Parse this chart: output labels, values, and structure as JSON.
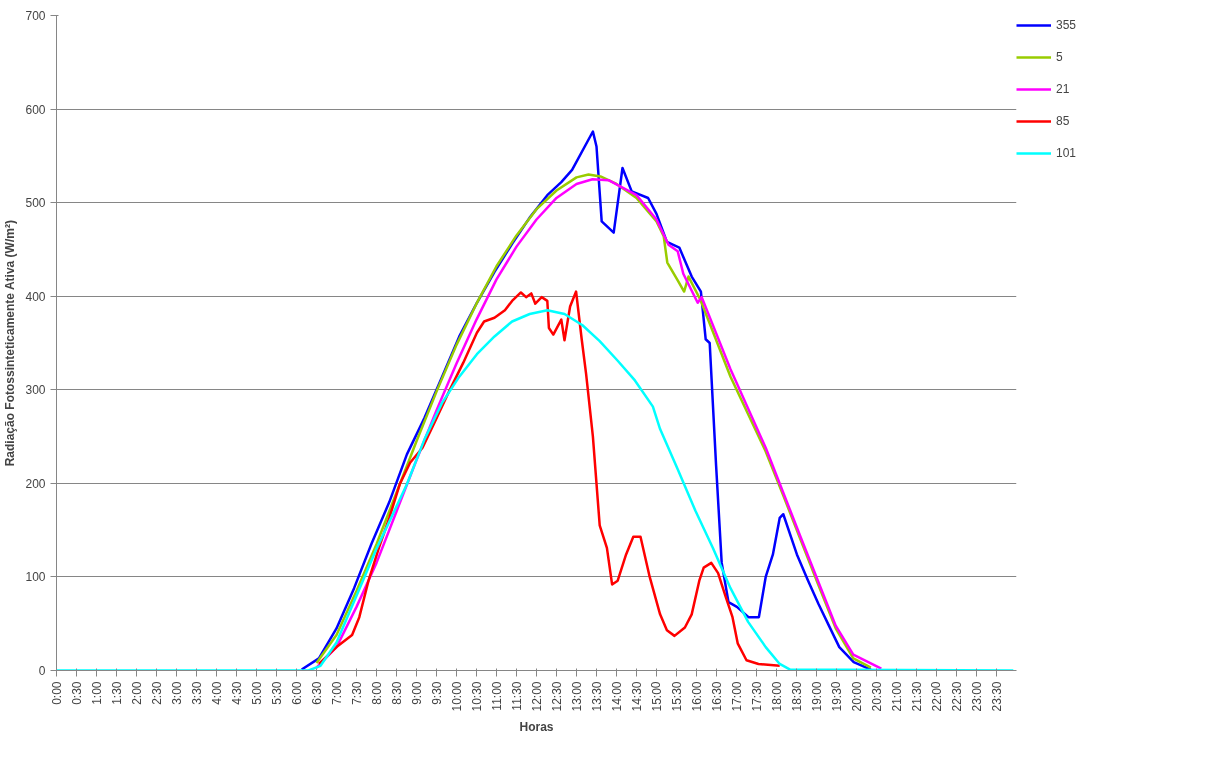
{
  "chart_data": {
    "type": "line",
    "xlabel": "Horas",
    "ylabel": "Radiação Fotossinteticamente Ativa (W/m²)",
    "xlim": [
      0,
      24
    ],
    "ylim": [
      0,
      700
    ],
    "yticks": [
      0,
      100,
      200,
      300,
      400,
      500,
      600,
      700
    ],
    "xticks": [
      {
        "value": 0,
        "label": "0:00"
      },
      {
        "value": 0.5,
        "label": "0:30"
      },
      {
        "value": 1,
        "label": "1:00"
      },
      {
        "value": 1.5,
        "label": "1:30"
      },
      {
        "value": 2,
        "label": "2:00"
      },
      {
        "value": 2.5,
        "label": "2:30"
      },
      {
        "value": 3,
        "label": "3:00"
      },
      {
        "value": 3.5,
        "label": "3:30"
      },
      {
        "value": 4,
        "label": "4:00"
      },
      {
        "value": 4.5,
        "label": "4:30"
      },
      {
        "value": 5,
        "label": "5:00"
      },
      {
        "value": 5.5,
        "label": "5:30"
      },
      {
        "value": 6,
        "label": "6:00"
      },
      {
        "value": 6.5,
        "label": "6:30"
      },
      {
        "value": 7,
        "label": "7:00"
      },
      {
        "value": 7.5,
        "label": "7:30"
      },
      {
        "value": 8,
        "label": "8:00"
      },
      {
        "value": 8.5,
        "label": "8:30"
      },
      {
        "value": 9,
        "label": "9:00"
      },
      {
        "value": 9.5,
        "label": "9:30"
      },
      {
        "value": 10,
        "label": "10:00"
      },
      {
        "value": 10.5,
        "label": "10:30"
      },
      {
        "value": 11,
        "label": "11:00"
      },
      {
        "value": 11.5,
        "label": "11:30"
      },
      {
        "value": 12,
        "label": "12:00"
      },
      {
        "value": 12.5,
        "label": "12:30"
      },
      {
        "value": 13,
        "label": "13:00"
      },
      {
        "value": 13.5,
        "label": "13:30"
      },
      {
        "value": 14,
        "label": "14:00"
      },
      {
        "value": 14.5,
        "label": "14:30"
      },
      {
        "value": 15,
        "label": "15:00"
      },
      {
        "value": 15.5,
        "label": "15:30"
      },
      {
        "value": 16,
        "label": "16:00"
      },
      {
        "value": 16.5,
        "label": "16:30"
      },
      {
        "value": 17,
        "label": "17:00"
      },
      {
        "value": 17.5,
        "label": "17:30"
      },
      {
        "value": 18,
        "label": "18:00"
      },
      {
        "value": 18.5,
        "label": "18:30"
      },
      {
        "value": 19,
        "label": "19:00"
      },
      {
        "value": 19.5,
        "label": "19:30"
      },
      {
        "value": 20,
        "label": "20:00"
      },
      {
        "value": 20.5,
        "label": "20:30"
      },
      {
        "value": 21,
        "label": "21:00"
      },
      {
        "value": 21.5,
        "label": "21:30"
      },
      {
        "value": 22,
        "label": "22:00"
      },
      {
        "value": 22.5,
        "label": "22:30"
      },
      {
        "value": 23,
        "label": "23:00"
      },
      {
        "value": 23.5,
        "label": "23:30"
      }
    ],
    "grid": "y",
    "legend": "right",
    "marker": "none",
    "line_style": "solid",
    "series": [
      {
        "name": "355",
        "color": "#0000ff",
        "x": [
          6.13,
          6.56,
          7.0,
          7.44,
          7.88,
          8.32,
          8.76,
          9.2,
          9.64,
          10.07,
          10.51,
          10.95,
          11.39,
          11.83,
          12.27,
          12.62,
          12.89,
          13.41,
          13.5,
          13.63,
          13.93,
          14.15,
          14.38,
          14.79,
          15.0,
          15.26,
          15.57,
          15.88,
          16.11,
          16.23,
          16.33,
          16.49,
          16.63,
          16.8,
          17.01,
          17.3,
          17.56,
          17.73,
          17.91,
          18.08,
          18.17,
          18.51,
          18.79,
          19.05,
          19.31,
          19.57,
          19.93,
          20.36
        ],
        "values": [
          1,
          13,
          45,
          88,
          136,
          180,
          231,
          270,
          314,
          357,
          393,
          426,
          456,
          484,
          508,
          522,
          535,
          576,
          560,
          480,
          468,
          537,
          512,
          505,
          488,
          458,
          452,
          421,
          405,
          354,
          350,
          219,
          115,
          73,
          68,
          57,
          57,
          100,
          124,
          163,
          167,
          124,
          96,
          71,
          48,
          25,
          9,
          1
        ]
      },
      {
        "name": "5",
        "color": "#99cc00",
        "x": [
          6.5,
          7.0,
          7.5,
          8.0,
          8.5,
          9.0,
          9.5,
          10.0,
          10.5,
          11.0,
          11.5,
          12.0,
          12.5,
          13.0,
          13.3,
          13.6,
          14.0,
          14.5,
          15.0,
          15.18,
          15.27,
          15.53,
          15.69,
          15.8,
          16.1,
          16.85,
          17.73,
          18.17,
          18.6,
          19.04,
          19.48,
          19.92,
          20.36
        ],
        "values": [
          8,
          38,
          85,
          135,
          190,
          245,
          298,
          348,
          392,
          432,
          465,
          493,
          513,
          527,
          530,
          528,
          520,
          505,
          480,
          464,
          436,
          417,
          405,
          421,
          396,
          314,
          234,
          187,
          140,
          92,
          45,
          13,
          3
        ]
      },
      {
        "name": "21",
        "color": "#ff00ff",
        "x": [
          6.5,
          7.0,
          7.5,
          8.0,
          8.5,
          9.0,
          9.5,
          10.0,
          10.5,
          11.0,
          11.5,
          12.0,
          12.5,
          13.0,
          13.4,
          13.8,
          14.5,
          15.0,
          15.3,
          15.53,
          15.67,
          16.03,
          16.13,
          16.85,
          17.73,
          18.6,
          19.48,
          19.92,
          20.62
        ],
        "values": [
          3,
          25,
          68,
          115,
          170,
          225,
          278,
          328,
          375,
          418,
          453,
          482,
          505,
          520,
          525,
          524,
          508,
          482,
          455,
          448,
          424,
          393,
          399,
          322,
          238,
          143,
          48,
          17,
          2
        ]
      },
      {
        "name": "85",
        "color": "#ff0000",
        "x": [
          6.56,
          7.0,
          7.39,
          7.57,
          7.8,
          8.06,
          8.32,
          8.58,
          8.84,
          9.15,
          9.46,
          9.81,
          10.17,
          10.51,
          10.69,
          10.95,
          11.21,
          11.39,
          11.61,
          11.74,
          11.87,
          11.97,
          12.13,
          12.27,
          12.31,
          12.42,
          12.62,
          12.7,
          12.84,
          12.99,
          13.13,
          13.24,
          13.41,
          13.58,
          13.76,
          13.89,
          14.03,
          14.24,
          14.42,
          14.6,
          14.83,
          15.09,
          15.26,
          15.45,
          15.71,
          15.88,
          16.07,
          16.18,
          16.37,
          16.54,
          16.72,
          16.9,
          17.03,
          17.25,
          17.55,
          18.08
        ],
        "values": [
          7,
          25,
          38,
          57,
          96,
          131,
          163,
          199,
          222,
          238,
          266,
          298,
          329,
          361,
          373,
          377,
          385,
          395,
          404,
          399,
          403,
          392,
          399,
          395,
          366,
          359,
          375,
          353,
          389,
          405,
          354,
          317,
          250,
          155,
          131,
          92,
          96,
          124,
          143,
          143,
          100,
          60,
          43,
          37,
          46,
          60,
          96,
          110,
          115,
          104,
          80,
          57,
          29,
          11,
          7,
          5
        ]
      },
      {
        "name": "101",
        "color": "#00ffff",
        "x": [
          0,
          6.3,
          6.6,
          7.0,
          7.5,
          8.0,
          8.76,
          9.2,
          9.64,
          10.07,
          10.51,
          10.95,
          11.39,
          11.83,
          12.27,
          12.7,
          13.15,
          13.58,
          14.03,
          14.46,
          14.91,
          15.09,
          15.53,
          15.97,
          16.41,
          16.85,
          17.29,
          17.73,
          18.08,
          18.34,
          23.92
        ],
        "values": [
          0,
          0,
          5,
          30,
          80,
          130,
          199,
          247,
          286,
          314,
          338,
          357,
          373,
          381,
          385,
          381,
          369,
          352,
          331,
          310,
          282,
          258,
          215,
          171,
          131,
          88,
          52,
          25,
          7,
          1,
          0
        ]
      }
    ]
  }
}
